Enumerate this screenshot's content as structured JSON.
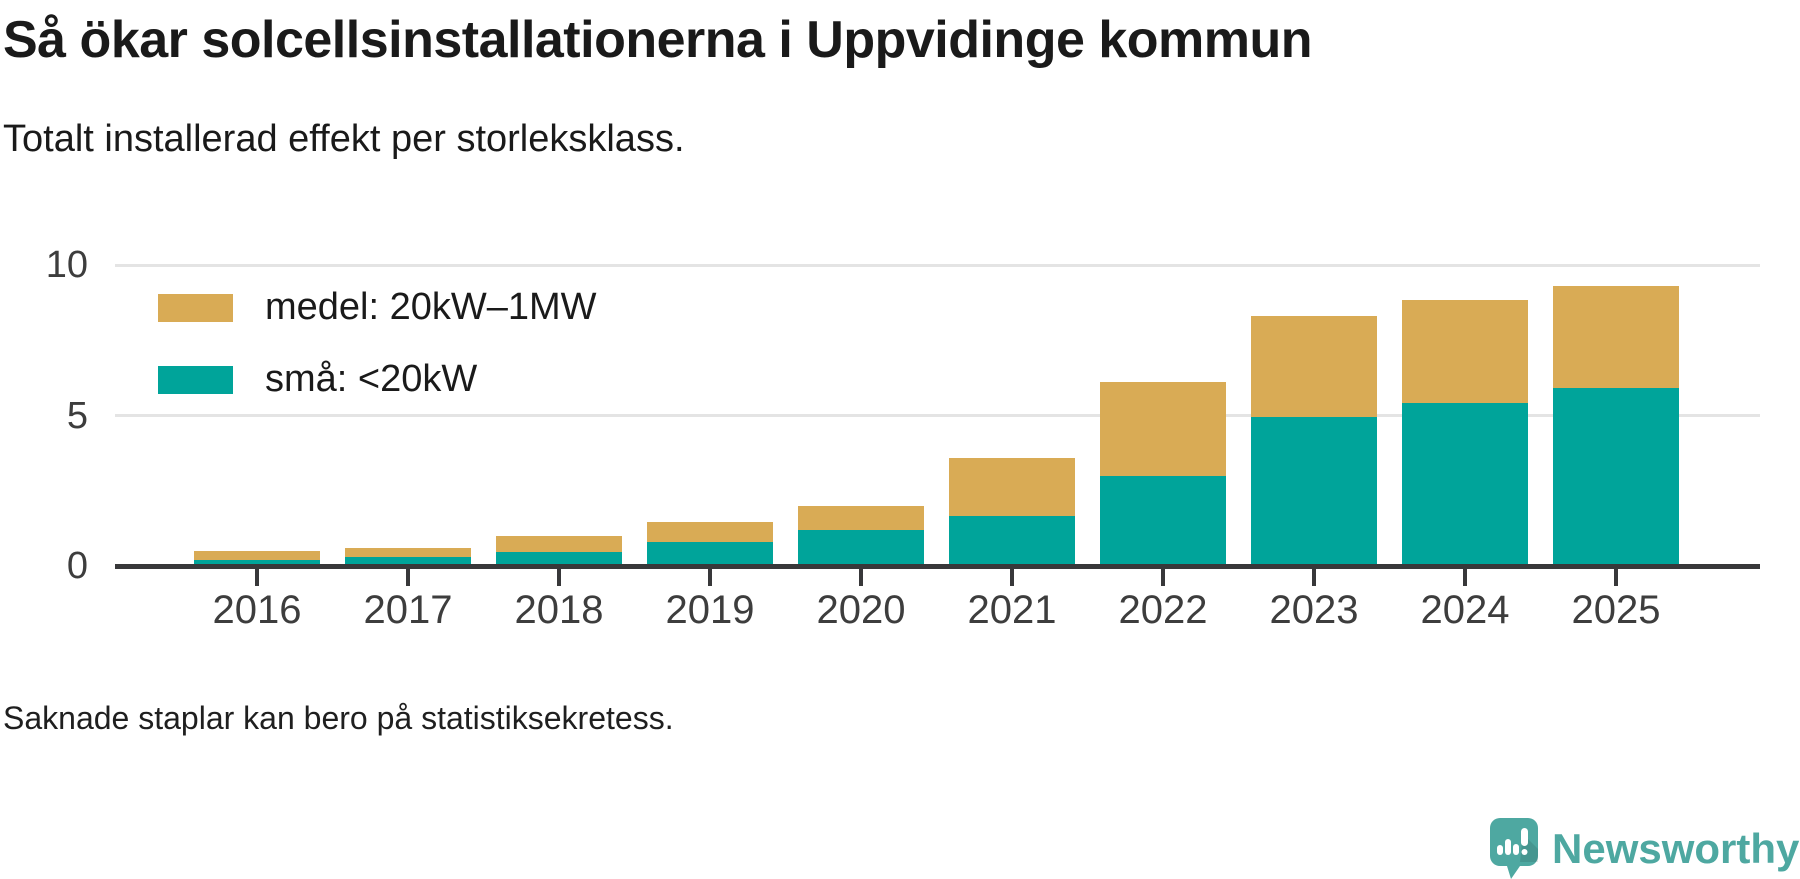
{
  "header": {
    "title": "Så ökar solcellsinstallationerna i Uppvidinge kommun",
    "subtitle": "Totalt installerad effekt per storleksklass."
  },
  "chart_data": {
    "type": "bar",
    "stacked": true,
    "title": "Så ökar solcellsinstallationerna i Uppvidinge kommun",
    "subtitle": "Totalt installerad effekt per storleksklass.",
    "categories": [
      "2016",
      "2017",
      "2018",
      "2019",
      "2020",
      "2021",
      "2022",
      "2023",
      "2024",
      "2025"
    ],
    "series": [
      {
        "name": "medel: 20kW–1MW",
        "color": "#d9ab55",
        "values": [
          0.3,
          0.3,
          0.55,
          0.65,
          0.8,
          1.95,
          3.1,
          3.35,
          3.45,
          3.4
        ]
      },
      {
        "name": "små: <20kW",
        "color": "#00a49a",
        "values": [
          0.2,
          0.3,
          0.45,
          0.8,
          1.2,
          1.65,
          3.0,
          4.95,
          5.4,
          5.9
        ]
      }
    ],
    "stack_order_bottom_to_top": [
      "små: <20kW",
      "medel: 20kW–1MW"
    ],
    "totals": [
      0.5,
      0.6,
      1.0,
      1.45,
      2.0,
      3.6,
      6.1,
      8.3,
      8.85,
      9.3
    ],
    "ylim": [
      0,
      10
    ],
    "yticks": [
      0,
      5,
      10
    ],
    "xlabel": "",
    "ylabel": "",
    "grid": "horizontal",
    "legend_position": "top-left-inside"
  },
  "footer": {
    "note": "Saknade staplar kan bero på statistiksekretess."
  },
  "brand": {
    "name": "Newsworthy",
    "icon": "newsworthy-speech-bubble-bar-chart-icon",
    "color": "#4ea8a1"
  },
  "colors": {
    "background": "#ffffff",
    "axis": "#38383a",
    "gridline": "#e4e4e4",
    "title_text": "#1a1a1a",
    "tick_label": "#3d3d3d"
  }
}
